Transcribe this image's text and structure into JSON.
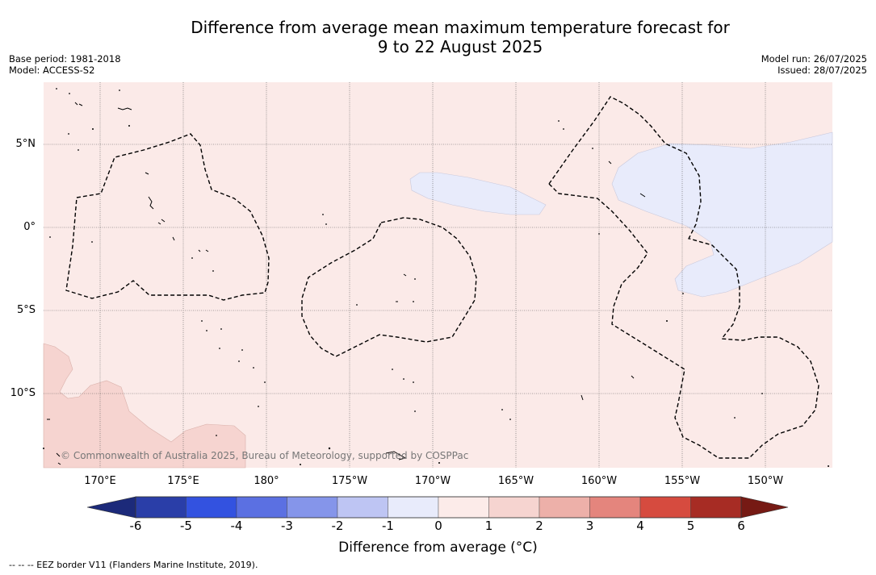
{
  "title_line1": "Difference from average mean maximum temperature forecast for",
  "title_line2": "9 to 22 August 2025",
  "base_period": "Base period: 1981-2018",
  "model": "Model: ACCESS-S2",
  "model_run": "Model run: 26/07/2025",
  "issued": "Issued: 28/07/2025",
  "lat_labels": [
    "5°N",
    "0°",
    "5°S",
    "10°S"
  ],
  "lon_labels": [
    "170°E",
    "175°E",
    "180°",
    "175°W",
    "170°W",
    "165°W",
    "160°W",
    "155°W",
    "150°W"
  ],
  "copyright": "© Commonwealth of Australia 2025, Bureau of Meteorology, supported by COSPPac",
  "colorbar": {
    "ticks": [
      "-6",
      "-5",
      "-4",
      "-3",
      "-2",
      "-1",
      "0",
      "1",
      "2",
      "3",
      "4",
      "5",
      "6"
    ],
    "colors": [
      "#2a3ea8",
      "#3352e0",
      "#5b70e2",
      "#8595ea",
      "#bec5f3",
      "#e8ebfb",
      "#fcebe9",
      "#f6d4d0",
      "#edb0a9",
      "#e4857d",
      "#d64b3f",
      "#a72c24"
    ],
    "under_color": "#1c2a7a",
    "over_color": "#761a14",
    "title": "Difference from average (°C)"
  },
  "legend_note": "-- -- -- EEZ border V11 (Flanders Marine Institute, 2019).",
  "map_colors": {
    "background": "#fbeae8",
    "cool_anomaly": "#e8ebfb",
    "warm_anomaly": "#f6d4d0"
  }
}
